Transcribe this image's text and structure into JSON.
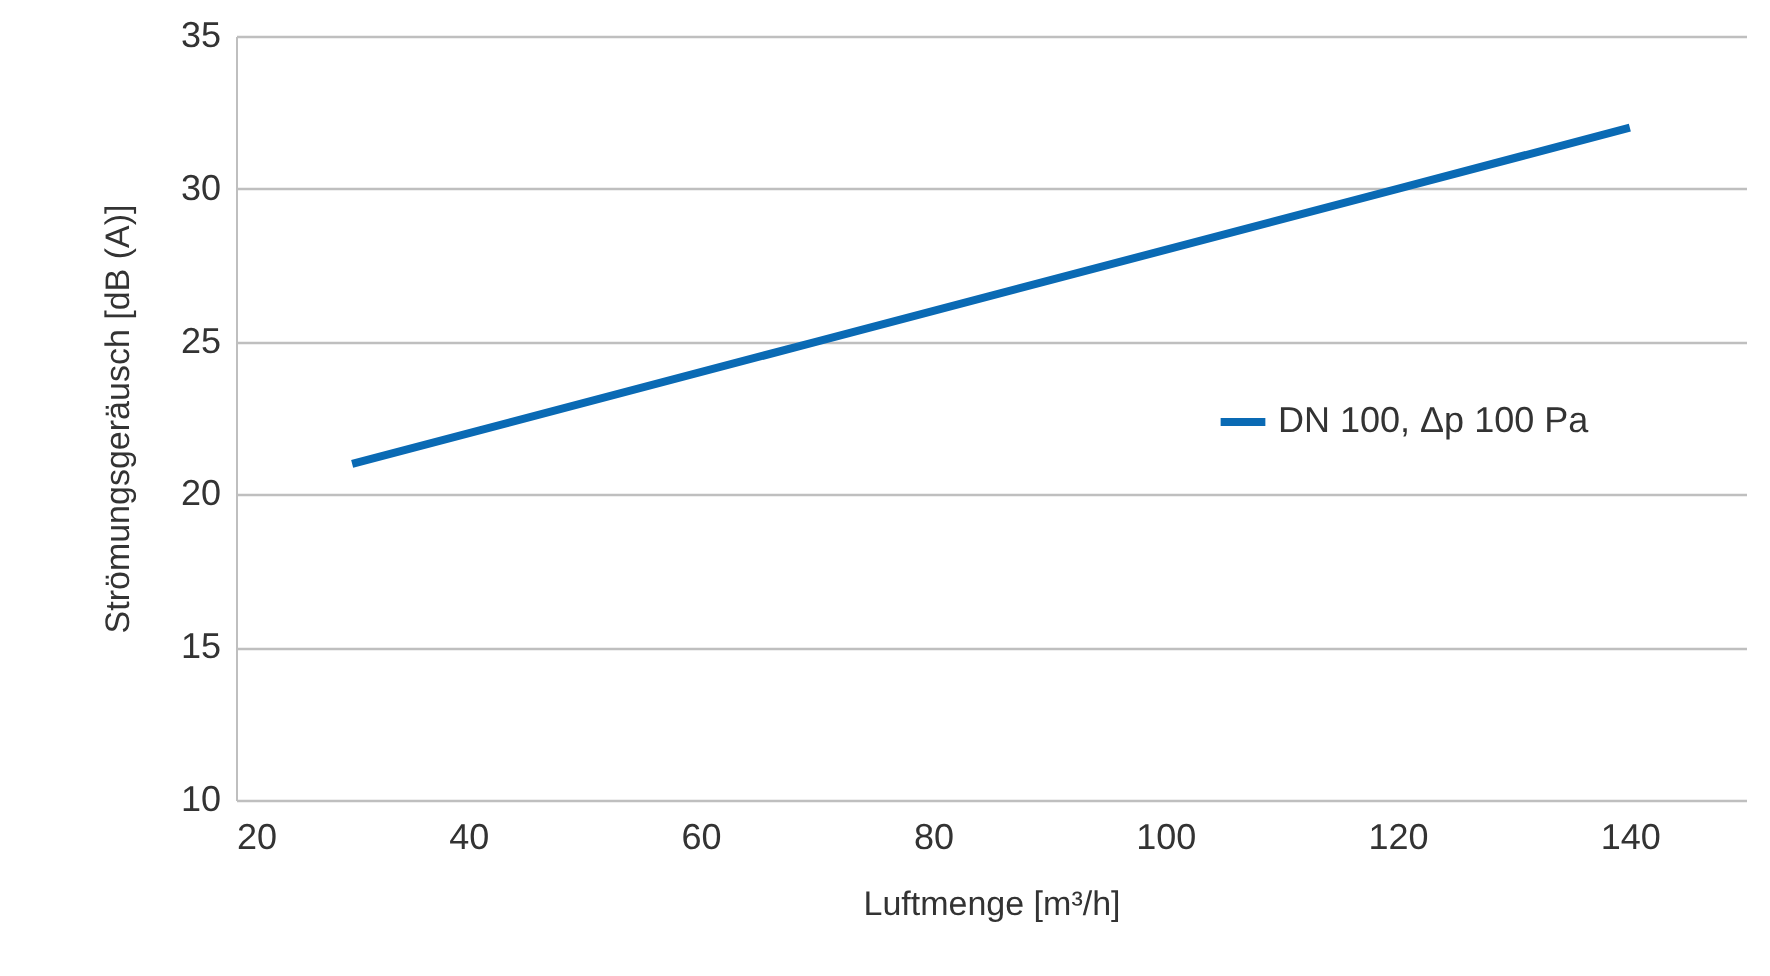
{
  "chart_data": {
    "type": "line",
    "xlabel": "Luftmenge [m³/h]",
    "ylabel": "Strömungsgeräusch [dB (A)]",
    "x": [
      30,
      70,
      120,
      140
    ],
    "series": [
      {
        "name": "DN 100, Δp 100 Pa",
        "color": "#0a6ab4",
        "values": [
          21,
          25,
          30,
          32
        ]
      }
    ],
    "xlim": [
      20,
      150
    ],
    "xticks": [
      20,
      40,
      60,
      80,
      100,
      120,
      140
    ],
    "ylim": [
      10,
      35
    ],
    "yticks": [
      10,
      15,
      20,
      25,
      30,
      35
    ],
    "grid": "y",
    "legend": "right",
    "marker": "none",
    "line_style": "solid"
  }
}
